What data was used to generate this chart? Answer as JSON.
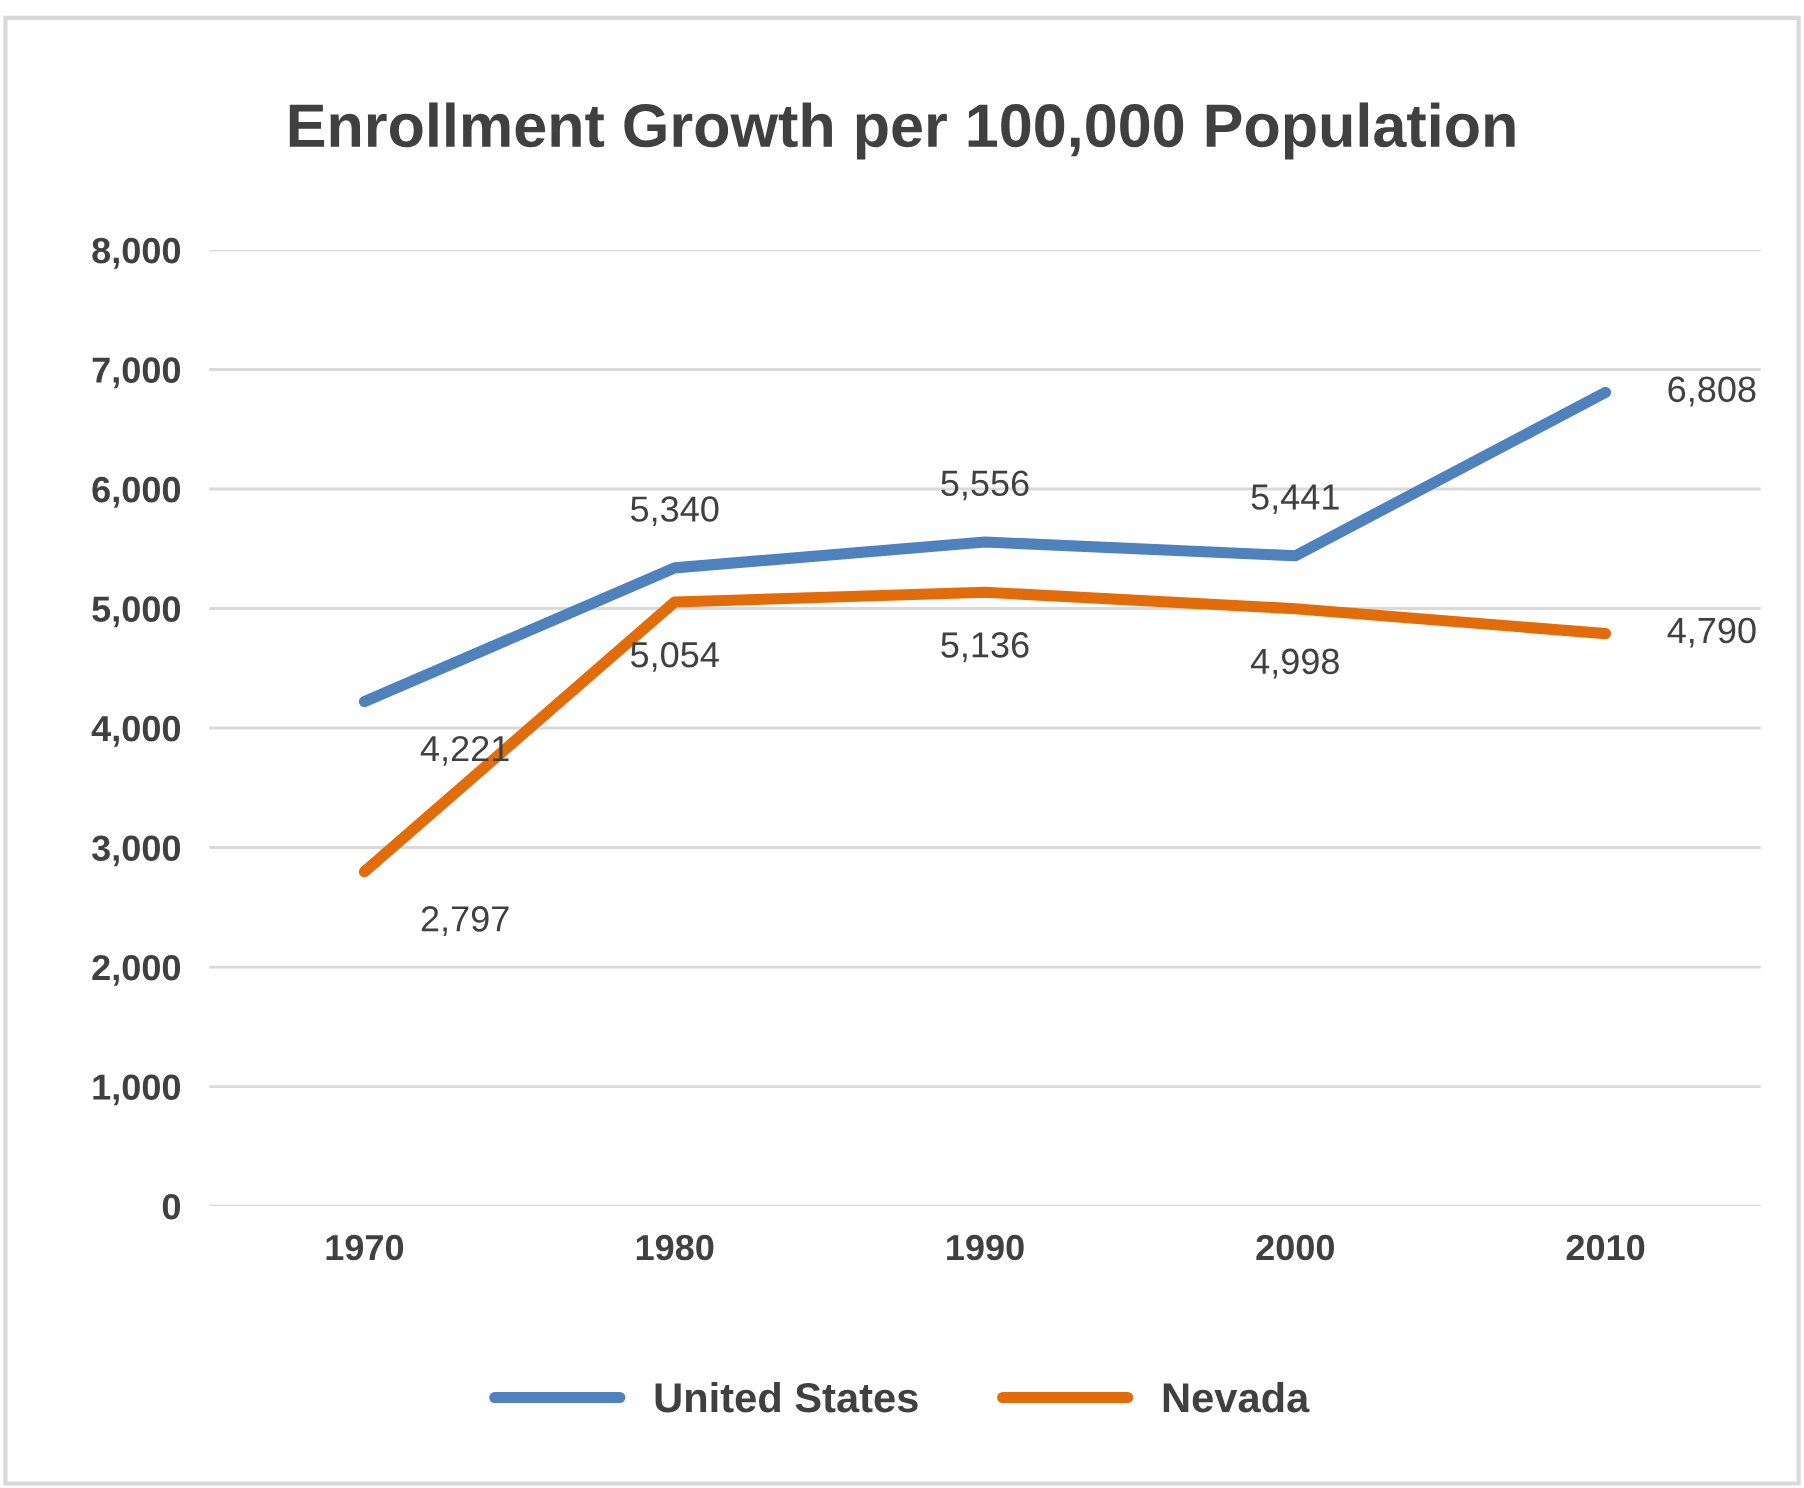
{
  "chart_data": {
    "type": "line",
    "title": "Enrollment Growth per 100,000 Population",
    "categories": [
      "1970",
      "1980",
      "1990",
      "2000",
      "2010"
    ],
    "series": [
      {
        "name": "United States",
        "color": "#4f81bd",
        "values": [
          4221,
          5340,
          5556,
          5441,
          6808
        ],
        "value_labels": [
          "4,221",
          "5,340",
          "5,556",
          "5,441",
          "6,808"
        ]
      },
      {
        "name": "Nevada",
        "color": "#e36c0a",
        "values": [
          2797,
          5054,
          5136,
          4998,
          4790
        ],
        "value_labels": [
          "2,797",
          "5,054",
          "5,136",
          "4,998",
          "4,790"
        ]
      }
    ],
    "ylim": [
      0,
      8000
    ],
    "yticks": [
      {
        "value": 0,
        "label": "0"
      },
      {
        "value": 1000,
        "label": "1,000"
      },
      {
        "value": 2000,
        "label": "2,000"
      },
      {
        "value": 3000,
        "label": "3,000"
      },
      {
        "value": 4000,
        "label": "4,000"
      },
      {
        "value": 5000,
        "label": "5,000"
      },
      {
        "value": 6000,
        "label": "6,000"
      },
      {
        "value": 7000,
        "label": "7,000"
      },
      {
        "value": 8000,
        "label": "8,000"
      }
    ],
    "grid": "y",
    "legend": "bottom",
    "marker": "none",
    "line_style": "solid"
  }
}
